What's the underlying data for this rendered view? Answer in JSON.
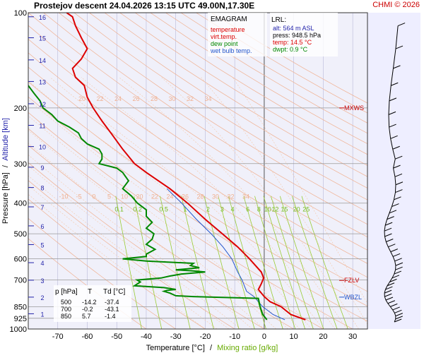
{
  "header": {
    "title": "Prostejov  descent  24.04.2026 13:15 UTC  49.00N,17.30E",
    "copyright": "CHMI © 2026"
  },
  "legend": {
    "heading": "EMAGRAM",
    "items": [
      {
        "label": "temperature",
        "color": "#dd0000"
      },
      {
        "label": "virt.temp.",
        "color": "#dd0000"
      },
      {
        "label": "dew point",
        "color": "#008800"
      },
      {
        "label": "wet bulb temp.",
        "color": "#2255cc"
      }
    ]
  },
  "lrl": {
    "heading": "LRL:",
    "alt": "alt: 564 m ASL",
    "press": "press: 948.5 hPa",
    "temp": "temp: 14.5 °C",
    "dwpt": "dwpt: 0.9 °C"
  },
  "table": {
    "headers": [
      "p [hPa]",
      "T",
      "Td [°C]"
    ],
    "rows": [
      [
        "500",
        "-14.2",
        "-37.4"
      ],
      [
        "700",
        "-0.2",
        "-43.1"
      ],
      [
        "850",
        "5.7",
        "-1.4"
      ]
    ]
  },
  "axes": {
    "ylabel_pressure": "Pressure [hPa]",
    "ylabel_sep": "/",
    "ylabel_altitude": "Altitude [km]",
    "xlabel_temp": "Temperature [°C]",
    "xlabel_sep": "/",
    "xlabel_mixing": "Mixing ratio [g/kg]"
  },
  "colors": {
    "temperature": "#dd0000",
    "dewpoint": "#008800",
    "wetbulb": "#2255cc",
    "dry_adiabat": "#f0b090",
    "moist_adiabat": "#f5c8a8",
    "mixing_ratio": "#99cc33",
    "isotherm": "#b8b8d8",
    "isobar": "#999999",
    "altitude": "#2222aa",
    "panel_bg": "#f0f0fa",
    "wind_panel_bg": "#eeeeff"
  },
  "chart_data": {
    "type": "line",
    "x_unit": "°C",
    "y_unit": "hPa",
    "xlim": [
      -80,
      35
    ],
    "ylim": [
      1000,
      100
    ],
    "y_scale": "log",
    "x_ticks": [
      -70,
      -60,
      -50,
      -40,
      -30,
      -20,
      -10,
      0,
      10,
      20,
      30
    ],
    "pressure_ticks": [
      100,
      200,
      300,
      400,
      500,
      600,
      700,
      850,
      925,
      1000
    ],
    "altitude_ticks": [
      {
        "km": "1",
        "p": 895
      },
      {
        "km": "2",
        "p": 793
      },
      {
        "km": "3",
        "p": 701
      },
      {
        "km": "4",
        "p": 617
      },
      {
        "km": "5",
        "p": 541
      },
      {
        "km": "6",
        "p": 472
      },
      {
        "km": "7",
        "p": 411
      },
      {
        "km": "8",
        "p": 357
      },
      {
        "km": "9",
        "p": 308
      },
      {
        "km": "10",
        "p": 265
      },
      {
        "km": "11",
        "p": 227
      },
      {
        "km": "12",
        "p": 194
      },
      {
        "km": "13",
        "p": 165
      },
      {
        "km": "14",
        "p": 141
      },
      {
        "km": "15",
        "p": 120
      },
      {
        "km": "16",
        "p": 103
      }
    ],
    "dry_adiabat_labels": [
      "-10",
      "-5",
      "0",
      "5",
      "10",
      "20",
      "22",
      "24",
      "26",
      "28",
      "30",
      "32",
      "34"
    ],
    "upper_adiabat_labels": [
      "20",
      "22",
      "24",
      "26",
      "28",
      "30",
      "32",
      "34"
    ],
    "mixing_ratio_labels": [
      "0.1",
      "0.2",
      "0.5",
      "1",
      "2",
      "3",
      "4",
      "6",
      "8",
      "10",
      "12",
      "15",
      "20",
      "25"
    ],
    "levels": [
      {
        "label": "MXWS",
        "p": 200
      },
      {
        "label": "FZLV",
        "p": 702
      },
      {
        "label": "WBZL",
        "p": 793
      }
    ],
    "series": [
      {
        "name": "temperature",
        "p": [
          935,
          900,
          850,
          820,
          790,
          750,
          720,
          690,
          660,
          600,
          550,
          500,
          450,
          400,
          360,
          320,
          300,
          270,
          240,
          220,
          200,
          185,
          170,
          160,
          150,
          140,
          130,
          120,
          110,
          103,
          100
        ],
        "t": [
          14,
          9,
          5.7,
          2,
          0,
          -2,
          -1,
          -0.2,
          -1,
          -5,
          -9,
          -14.2,
          -20,
          -26,
          -32,
          -40,
          -44,
          -48,
          -52,
          -55,
          -58,
          -60,
          -61,
          -64,
          -65,
          -62,
          -60,
          -62,
          -64,
          -65,
          -67
        ]
      },
      {
        "name": "dew point",
        "p": [
          935,
          900,
          850,
          800,
          790,
          785,
          770,
          760,
          755,
          750,
          740,
          730,
          710,
          700,
          690,
          680,
          670,
          660,
          655,
          650,
          640,
          630,
          620,
          610,
          600,
          590,
          580,
          560,
          540,
          520,
          500,
          480,
          460,
          440,
          420,
          400,
          380,
          360,
          340,
          320,
          310,
          300,
          290,
          280,
          270,
          260,
          250,
          240,
          230,
          220,
          210,
          200,
          190,
          180,
          170,
          160,
          150
        ],
        "td": [
          0.9,
          -0.5,
          -1.4,
          -2,
          -24,
          -30,
          -32,
          -34,
          -33,
          -30,
          -34,
          -44,
          -42,
          -43.1,
          -35,
          -32,
          -28,
          -20,
          -24,
          -30,
          -22,
          -25,
          -24,
          -40,
          -48,
          -40,
          -40,
          -37,
          -40,
          -38,
          -37.4,
          -40,
          -38,
          -40,
          -40,
          -43,
          -45,
          -48,
          -46,
          -48,
          -50,
          -56,
          -55,
          -55,
          -56,
          -60,
          -62,
          -63,
          -66,
          -70,
          -72,
          -75,
          -76,
          -78,
          -80,
          -84,
          -88
        ]
      },
      {
        "name": "wet bulb temp.",
        "p": [
          935,
          900,
          850,
          800,
          790,
          760,
          720,
          700,
          660,
          600,
          550,
          500,
          450,
          400,
          360
        ],
        "t": [
          7,
          3,
          -0.5,
          -3,
          -3.5,
          -6,
          -7,
          -7.5,
          -9,
          -11,
          -14,
          -18,
          -23,
          -28,
          -33
        ]
      }
    ]
  }
}
